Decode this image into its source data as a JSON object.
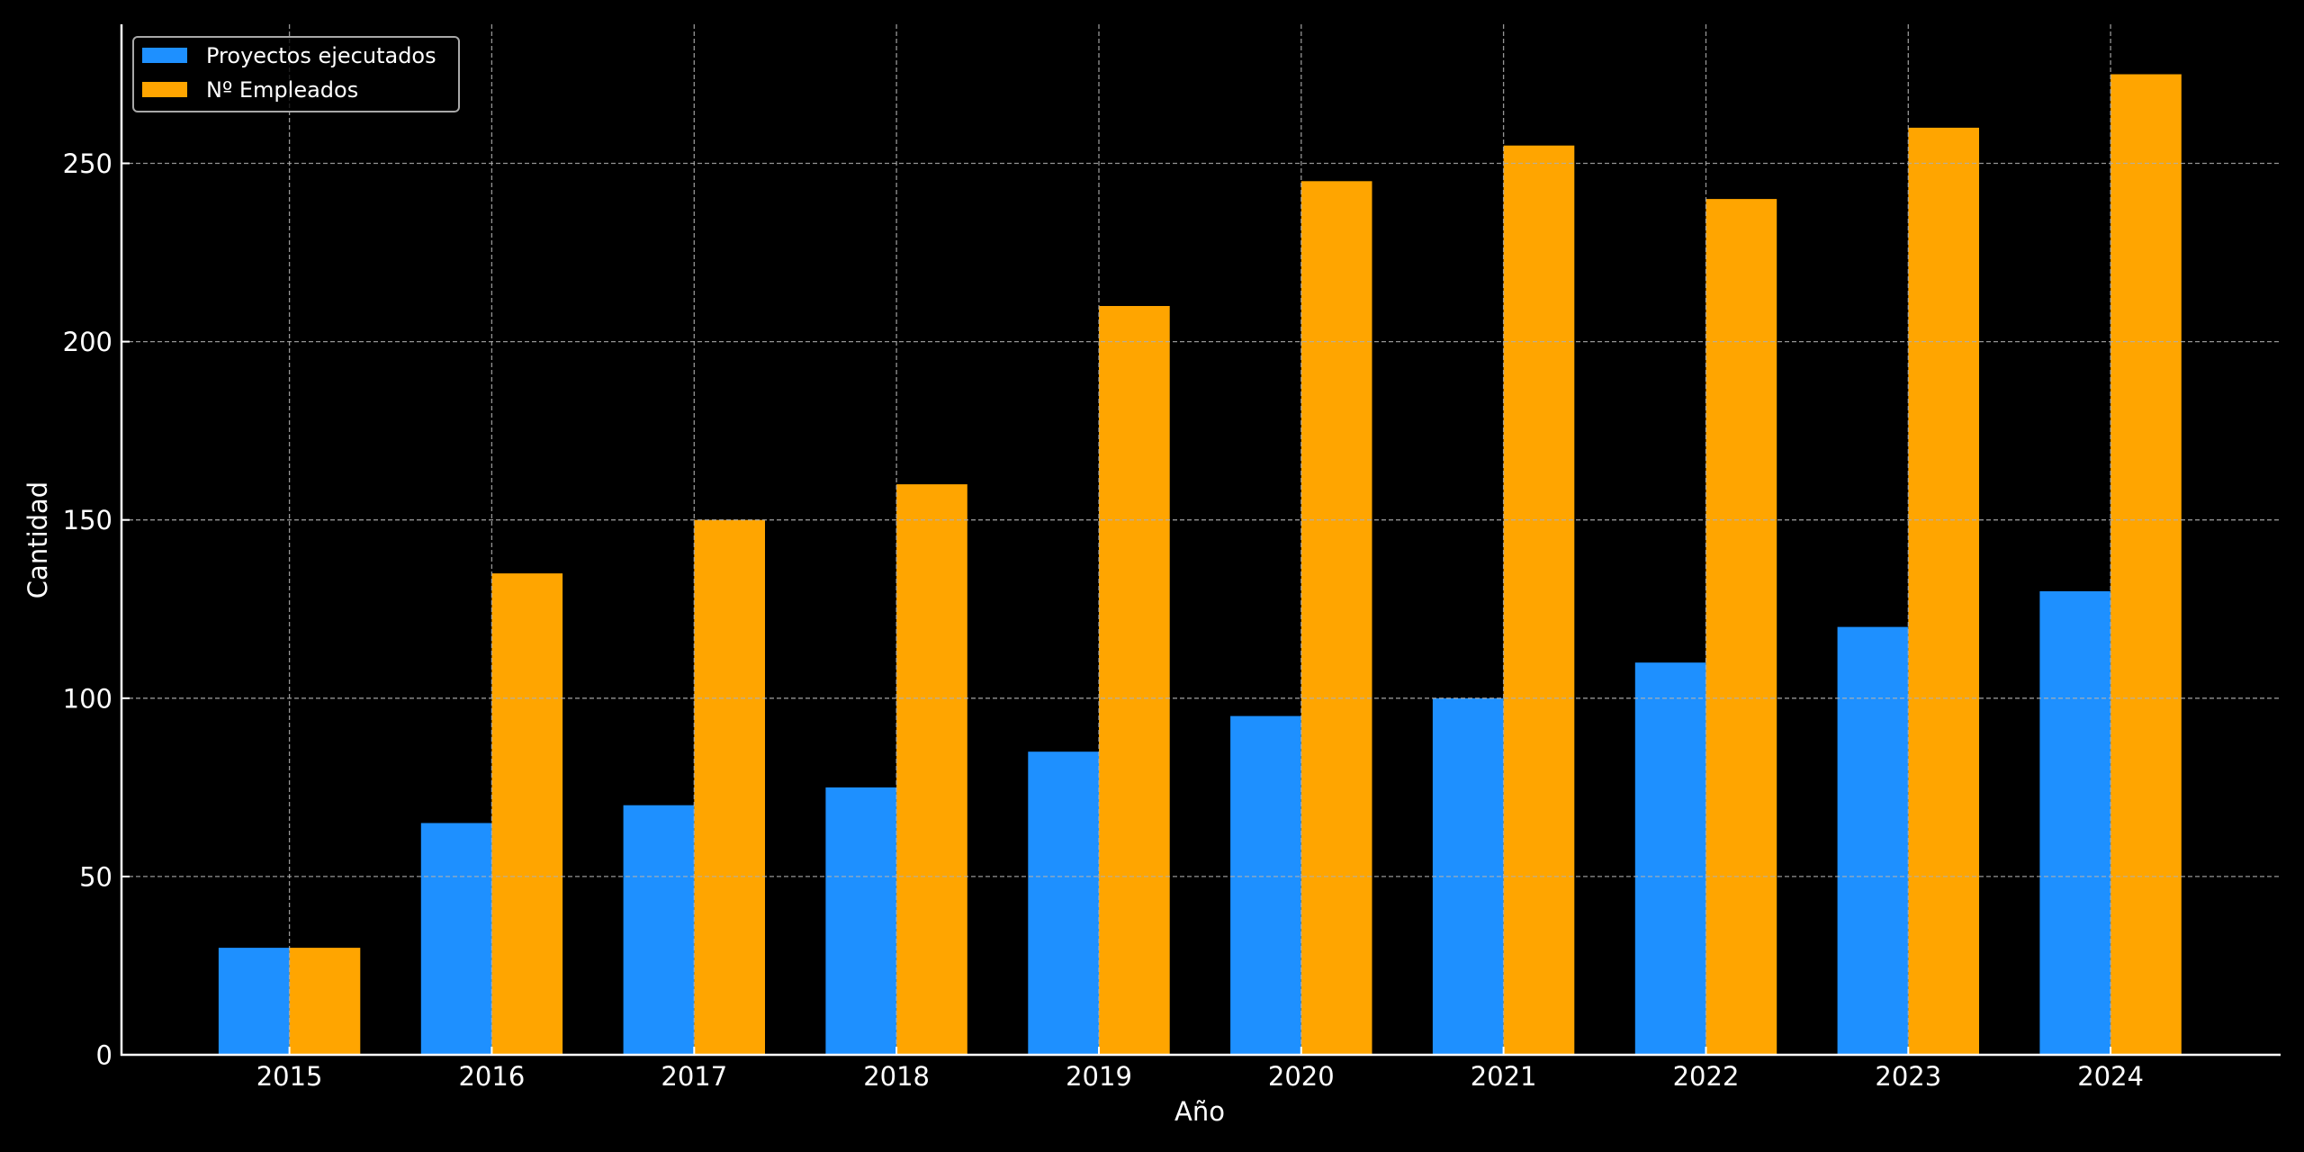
{
  "chart_data": {
    "type": "bar",
    "title": "",
    "xlabel": "Año",
    "ylabel": "Cantidad",
    "categories": [
      "2015",
      "2016",
      "2017",
      "2018",
      "2019",
      "2020",
      "2021",
      "2022",
      "2023",
      "2024"
    ],
    "series": [
      {
        "name": "Proyectos ejecutados",
        "color": "#1e90ff",
        "values": [
          30,
          65,
          70,
          75,
          85,
          95,
          100,
          110,
          120,
          130
        ]
      },
      {
        "name": "Nº Empleados",
        "color": "#ffa500",
        "values": [
          30,
          135,
          150,
          160,
          210,
          245,
          255,
          240,
          260,
          275
        ]
      }
    ],
    "yticks": [
      0,
      50,
      100,
      150,
      200,
      250
    ],
    "ytick_labels": [
      "0",
      "50",
      "100",
      "150",
      "200",
      "250"
    ],
    "ylim": [
      0,
      289
    ],
    "grid": true,
    "legend_position": "upper-left",
    "background": "#000000",
    "foreground": "#ffffff"
  }
}
